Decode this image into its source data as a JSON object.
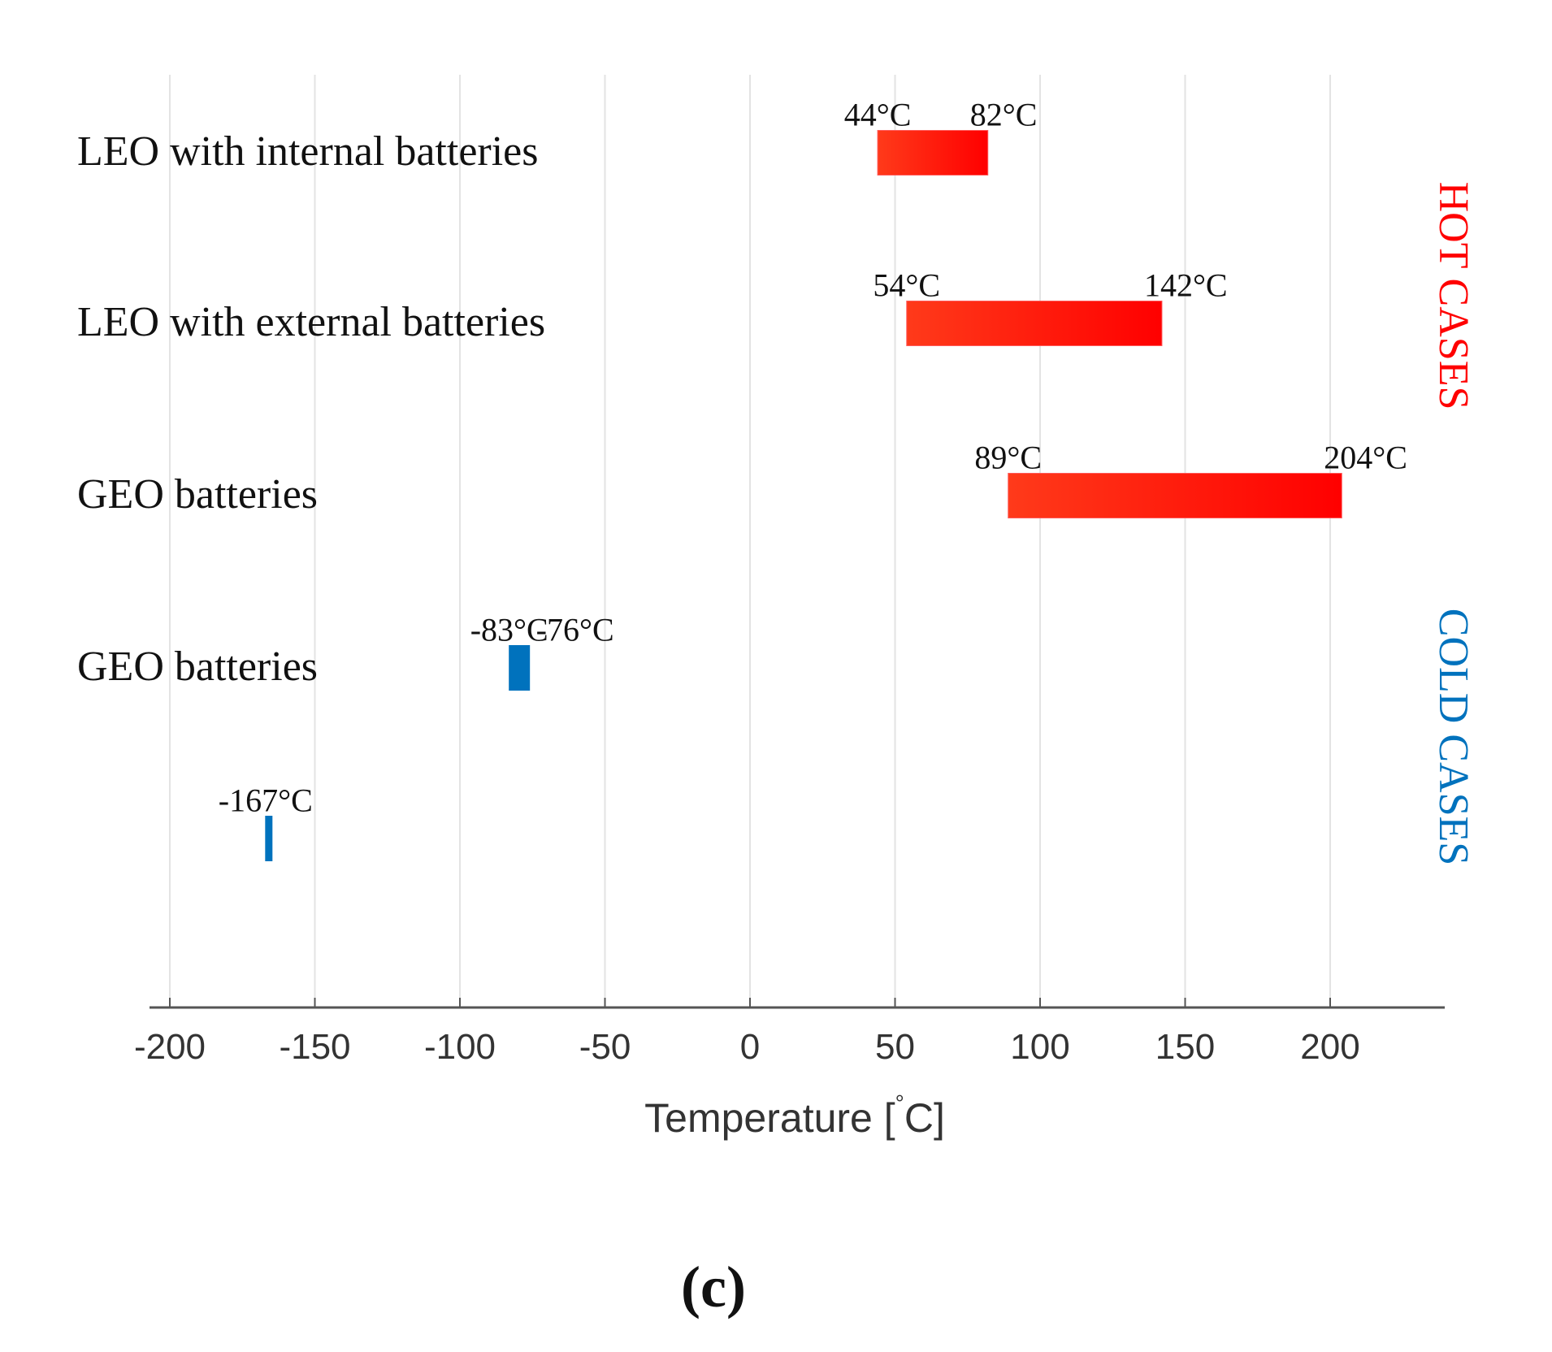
{
  "chart_data": {
    "type": "bar",
    "orientation": "horizontal-range",
    "title": "",
    "xlabel": "Temperature [°C]",
    "xlabel_main": "Temperature [",
    "xlabel_degree": "°",
    "xlabel_unit": "C]",
    "xlim": [
      -210,
      240
    ],
    "xticks": [
      -200,
      -150,
      -100,
      -50,
      0,
      50,
      100,
      150,
      200
    ],
    "grid": true,
    "categories": [
      "LEO with internal batteries",
      "LEO with external batteries",
      "GEO batteries",
      "GEO batteries",
      ""
    ],
    "series": [
      {
        "name": "HOT CASES",
        "color": "#ff0000",
        "color_start": "#ff3a1a",
        "bars": [
          {
            "row": 0,
            "min": 44,
            "max": 82,
            "min_label": "44°C",
            "max_label": "82°C"
          },
          {
            "row": 1,
            "min": 54,
            "max": 142,
            "min_label": "54°C",
            "max_label": "142°C"
          },
          {
            "row": 2,
            "min": 89,
            "max": 204,
            "min_label": "89°C",
            "max_label": "204°C"
          }
        ]
      },
      {
        "name": "COLD CASES",
        "color": "#0072bd",
        "bars": [
          {
            "row": 3,
            "min": -83,
            "max": -76,
            "min_label": "-83°C",
            "max_label": "-76°C"
          },
          {
            "row": 4,
            "min": -167,
            "max": -166,
            "min_label": "-167°C",
            "max_label": ""
          }
        ]
      }
    ],
    "side_labels": [
      {
        "text": "HOT CASES",
        "color": "#ff0000"
      },
      {
        "text": "COLD CASES",
        "color": "#0072bd"
      }
    ],
    "caption": "(c)",
    "axis_color": "#555555",
    "grid_color": "#e3e3e3"
  }
}
